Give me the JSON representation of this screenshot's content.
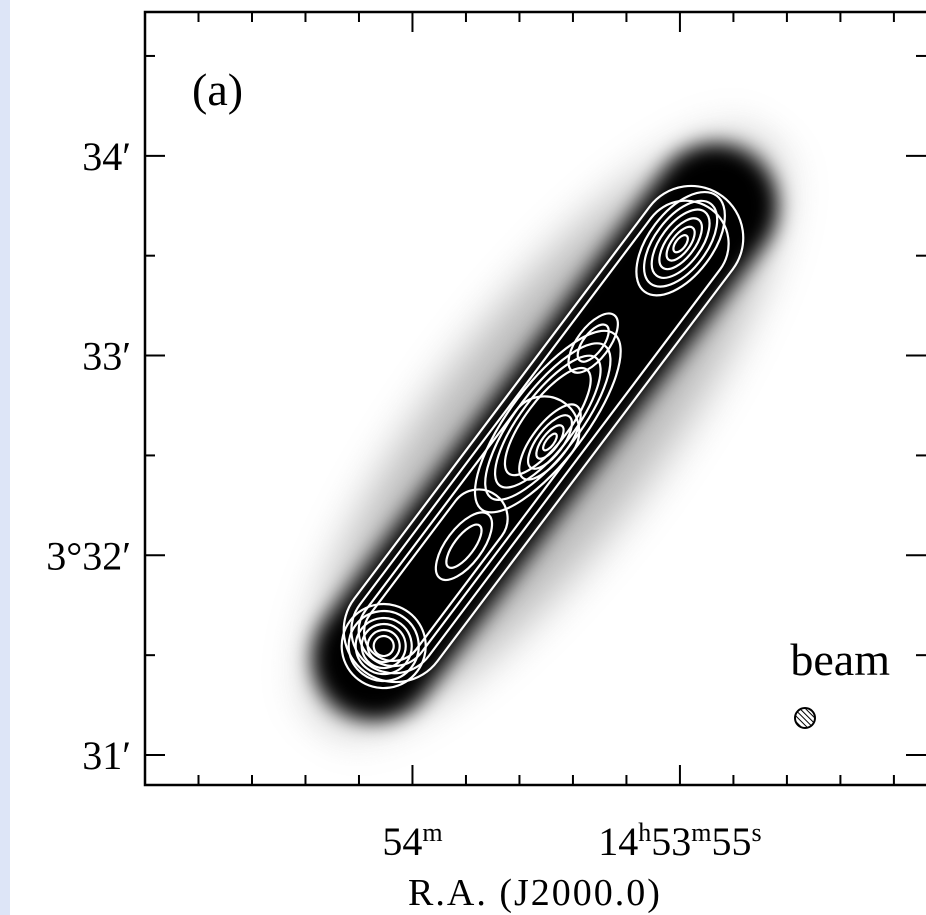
{
  "chart_data": {
    "type": "image",
    "panel_label": "(a)",
    "annotation": "beam",
    "x_label": "R.A. (J2000.0)",
    "xlim": [
      53645,
      53630.4
    ],
    "xticks": [
      {
        "value": 53640,
        "label": "54m"
      },
      {
        "value": 53635,
        "label": "14h53m55s"
      }
    ],
    "xminorticks": [
      53644,
      53643,
      53642,
      53641,
      53639,
      53638,
      53637,
      53636,
      53634,
      53633,
      53632,
      53631
    ],
    "ylim": [
      30.85,
      34.72
    ],
    "yticks": [
      {
        "value": 31,
        "label": "31′"
      },
      {
        "value": 32,
        "label": "3°32′"
      },
      {
        "value": 33,
        "label": "33′"
      },
      {
        "value": 34,
        "label": "34′"
      }
    ],
    "yminorticks": [
      31.5,
      32.5,
      33.5,
      34.5
    ]
  }
}
